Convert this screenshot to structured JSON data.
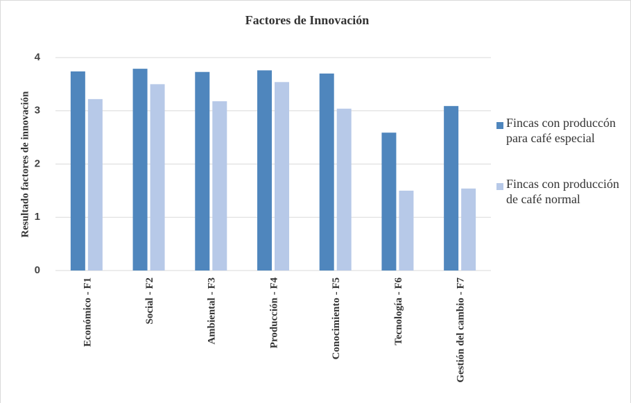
{
  "chart_data": {
    "type": "bar",
    "title": "Factores de Innovación",
    "y_label": "Resultado factores de innovación",
    "categories": [
      "Económico - F1",
      "Social - F2",
      "Ambiental - F3",
      "Producción - F4",
      "Conocimiento - F5",
      "Tecnología - F6",
      "Gestión del cambio - F7"
    ],
    "series": [
      {
        "name": "Fincas con produccón para café especial",
        "color": "#4f86bd",
        "values": [
          3.74,
          3.79,
          3.73,
          3.76,
          3.7,
          2.59,
          3.09
        ]
      },
      {
        "name": "Fincas con producción de café normal",
        "color": "#b7c9e8",
        "values": [
          3.22,
          3.5,
          3.18,
          3.54,
          3.04,
          1.5,
          1.54
        ]
      }
    ],
    "ylim": [
      0,
      4
    ],
    "yticks": [
      0,
      1,
      2,
      3,
      4
    ],
    "grid": true,
    "legend": "right"
  }
}
